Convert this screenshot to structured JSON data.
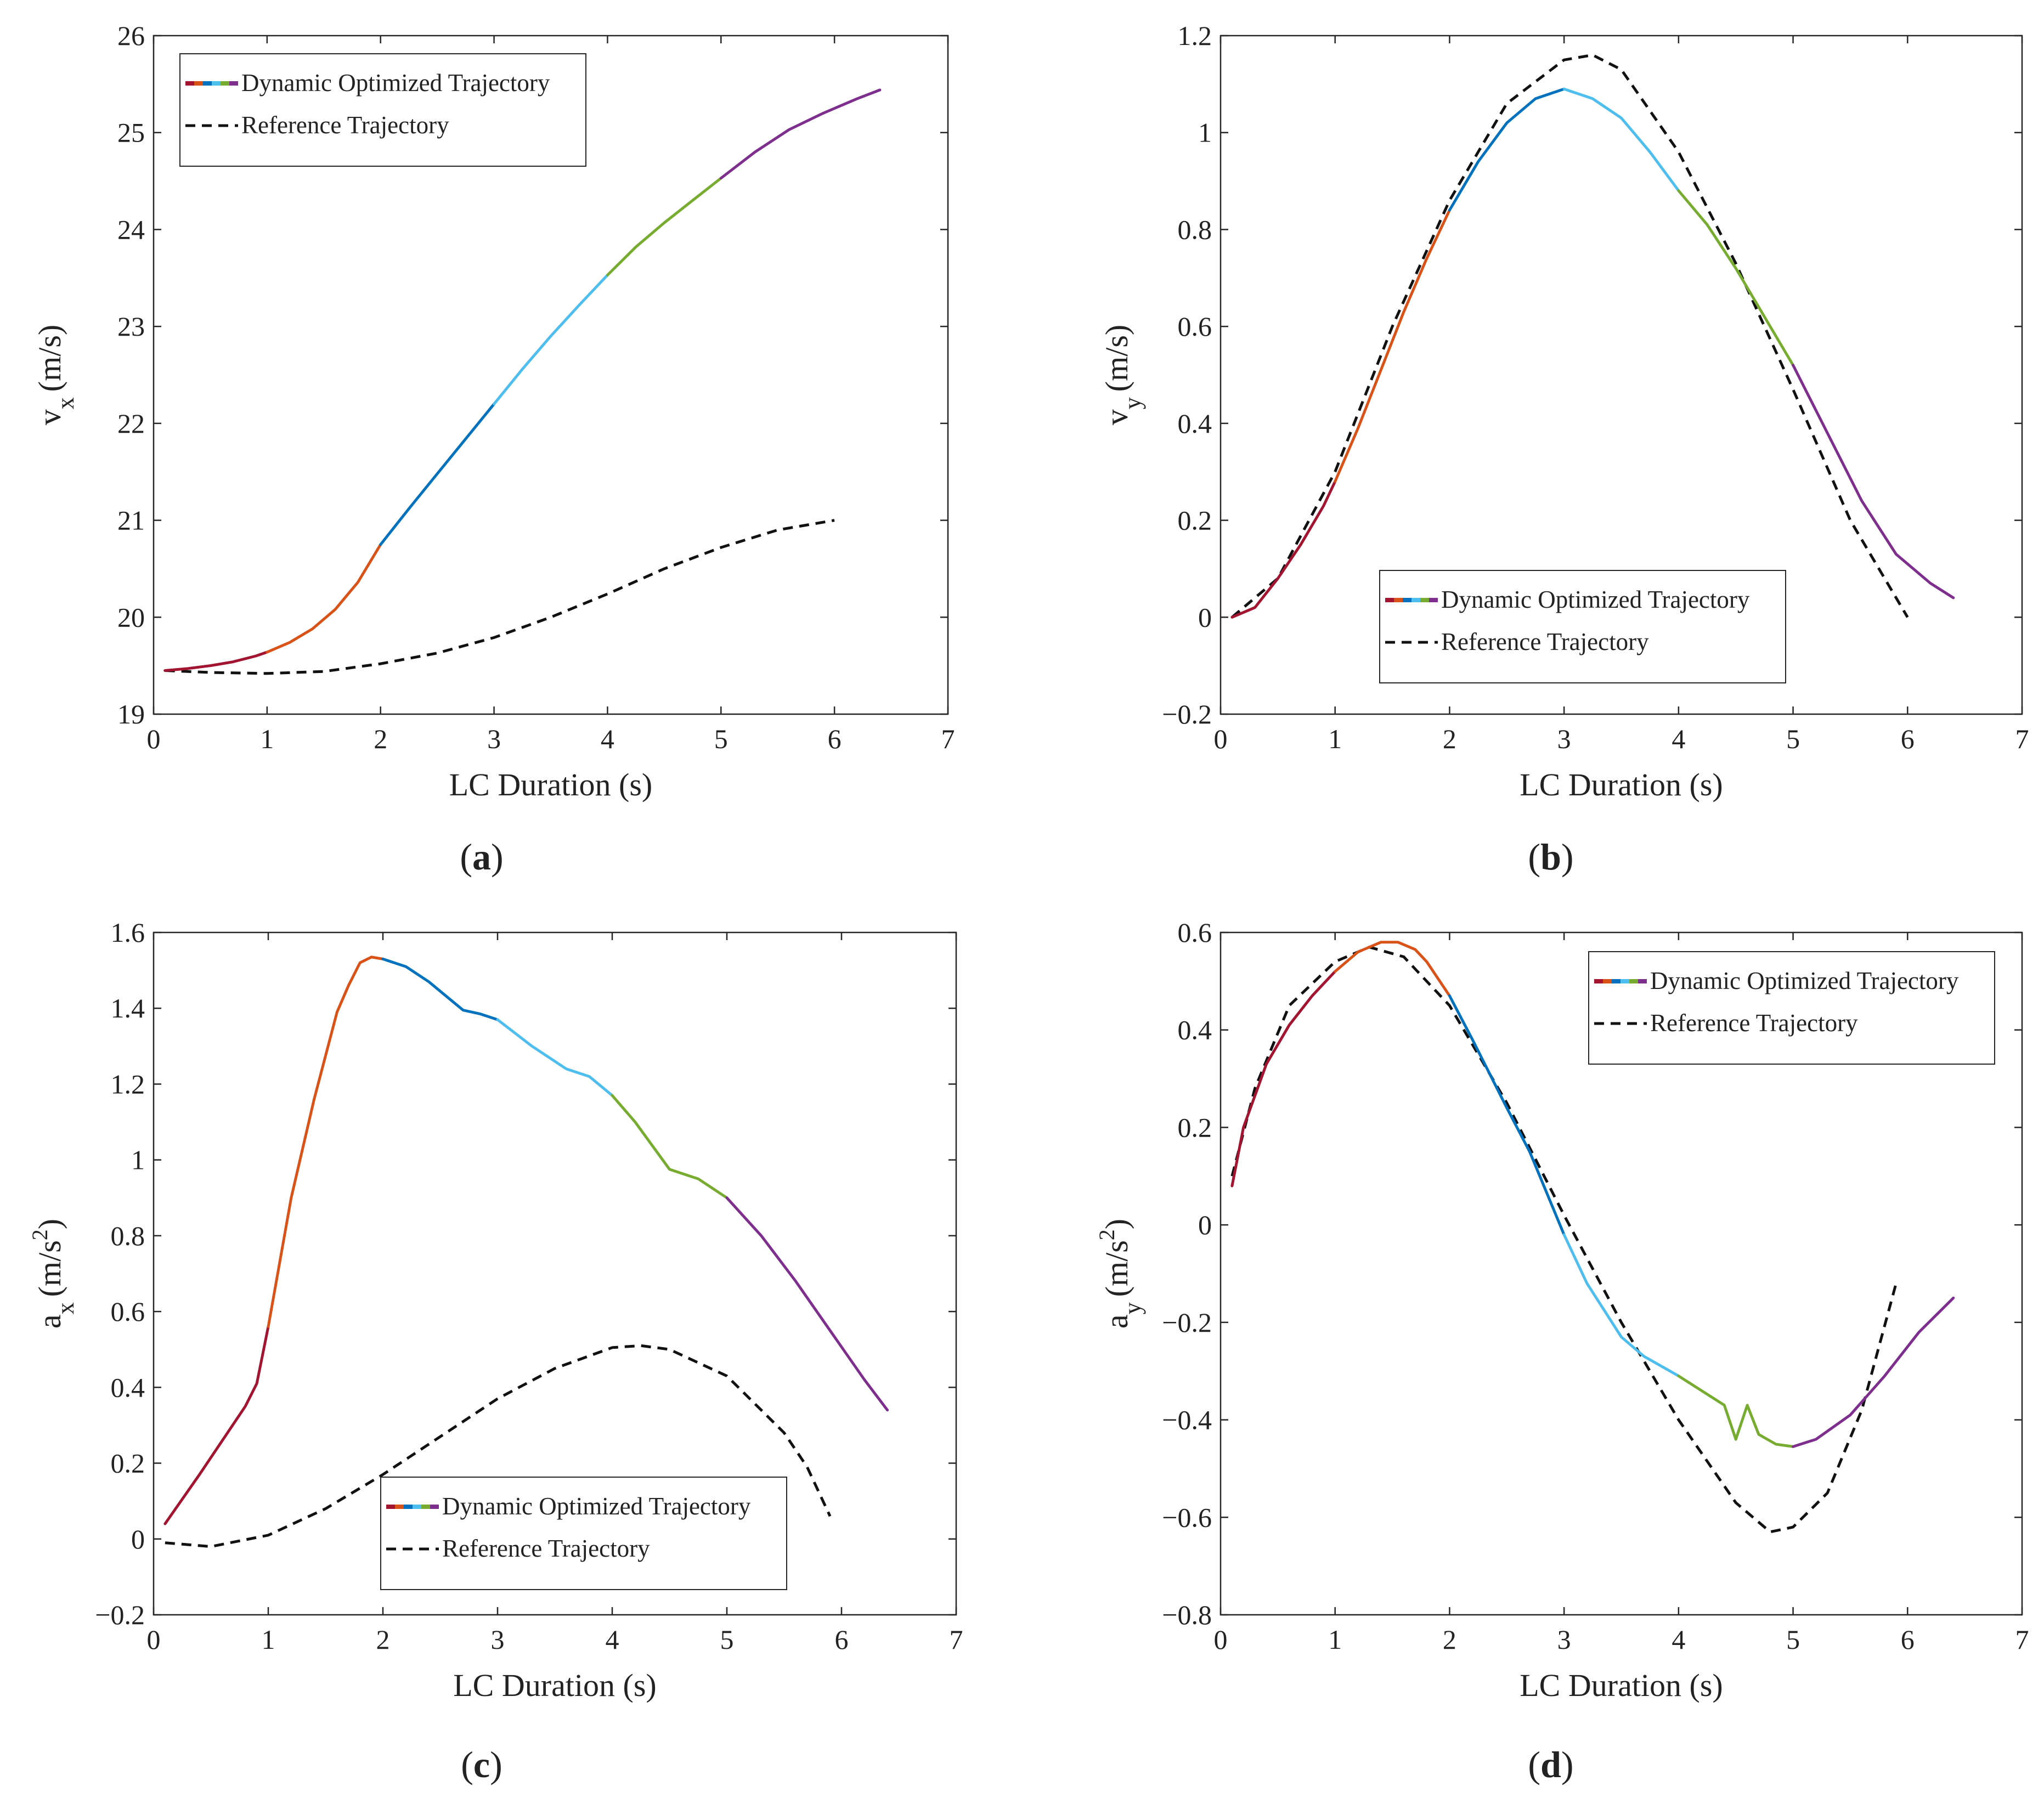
{
  "figure": {
    "captions": [
      "a",
      "b",
      "c",
      "d"
    ]
  },
  "chart_data": [
    {
      "panel": "a",
      "type": "line",
      "xlabel": "LC Duration (s)",
      "ylabel_main": "v",
      "ylabel_sub": "x",
      "ylabel_sup": "",
      "ylabel_unit": "(m/s)",
      "xlim": [
        0,
        7
      ],
      "ylim": [
        19,
        26
      ],
      "xticks": [
        0,
        1,
        2,
        3,
        4,
        5,
        6,
        7
      ],
      "yticks": [
        19,
        20,
        21,
        22,
        23,
        24,
        25,
        26
      ],
      "ytick_labels": [
        "19",
        "20",
        "21",
        "22",
        "23",
        "24",
        "25",
        "26"
      ],
      "legend_position": "top-left",
      "legend_entries": [
        "Dynamic Optimized Trajectory",
        "Reference Trajectory"
      ],
      "optimized_segments": [
        {
          "color": "#A2142F",
          "points": [
            [
              0.1,
              19.45
            ],
            [
              0.3,
              19.47
            ],
            [
              0.5,
              19.5
            ],
            [
              0.7,
              19.54
            ],
            [
              0.9,
              19.6
            ],
            [
              1.0,
              19.64
            ]
          ]
        },
        {
          "color": "#D95319",
          "points": [
            [
              1.0,
              19.64
            ],
            [
              1.2,
              19.74
            ],
            [
              1.4,
              19.88
            ],
            [
              1.6,
              20.08
            ],
            [
              1.8,
              20.36
            ],
            [
              2.0,
              20.75
            ]
          ]
        },
        {
          "color": "#0072BD",
          "points": [
            [
              2.0,
              20.75
            ],
            [
              2.25,
              21.12
            ],
            [
              2.5,
              21.48
            ],
            [
              2.75,
              21.84
            ],
            [
              3.0,
              22.2
            ]
          ]
        },
        {
          "color": "#4DBEEE",
          "points": [
            [
              3.0,
              22.2
            ],
            [
              3.25,
              22.56
            ],
            [
              3.5,
              22.9
            ],
            [
              3.75,
              23.22
            ],
            [
              4.0,
              23.53
            ]
          ]
        },
        {
          "color": "#77AC30",
          "points": [
            [
              4.0,
              23.53
            ],
            [
              4.25,
              23.82
            ],
            [
              4.5,
              24.07
            ],
            [
              4.75,
              24.3
            ],
            [
              5.0,
              24.53
            ]
          ]
        },
        {
          "color": "#7E2F8E",
          "points": [
            [
              5.0,
              24.53
            ],
            [
              5.3,
              24.8
            ],
            [
              5.6,
              25.03
            ],
            [
              5.9,
              25.2
            ],
            [
              6.2,
              25.35
            ],
            [
              6.4,
              25.44
            ]
          ]
        }
      ],
      "reference": {
        "points": [
          [
            0.1,
            19.45
          ],
          [
            0.5,
            19.43
          ],
          [
            1.0,
            19.42
          ],
          [
            1.5,
            19.44
          ],
          [
            2.0,
            19.52
          ],
          [
            2.5,
            19.63
          ],
          [
            3.0,
            19.79
          ],
          [
            3.5,
            20.0
          ],
          [
            4.0,
            20.24
          ],
          [
            4.5,
            20.5
          ],
          [
            5.0,
            20.72
          ],
          [
            5.5,
            20.9
          ],
          [
            6.0,
            21.0
          ]
        ]
      }
    },
    {
      "panel": "b",
      "type": "line",
      "xlabel": "LC Duration (s)",
      "ylabel_main": "v",
      "ylabel_sub": "y",
      "ylabel_sup": "",
      "ylabel_unit": "(m/s)",
      "xlim": [
        0,
        7
      ],
      "ylim": [
        -0.2,
        1.2
      ],
      "xticks": [
        0,
        1,
        2,
        3,
        4,
        5,
        6,
        7
      ],
      "yticks": [
        -0.2,
        0,
        0.2,
        0.4,
        0.6,
        0.8,
        1,
        1.2
      ],
      "ytick_labels": [
        "−0.2",
        "0",
        "0.2",
        "0.4",
        "0.6",
        "0.8",
        "1",
        "1.2"
      ],
      "legend_position": "bottom-center",
      "legend_entries": [
        "Dynamic Optimized Trajectory",
        "Reference Trajectory"
      ],
      "optimized_segments": [
        {
          "color": "#A2142F",
          "points": [
            [
              0.1,
              0.0
            ],
            [
              0.3,
              0.02
            ],
            [
              0.5,
              0.08
            ],
            [
              0.7,
              0.15
            ],
            [
              0.9,
              0.23
            ],
            [
              1.0,
              0.28
            ]
          ]
        },
        {
          "color": "#D95319",
          "points": [
            [
              1.0,
              0.28
            ],
            [
              1.2,
              0.39
            ],
            [
              1.4,
              0.51
            ],
            [
              1.6,
              0.63
            ],
            [
              1.8,
              0.74
            ],
            [
              2.0,
              0.84
            ]
          ]
        },
        {
          "color": "#0072BD",
          "points": [
            [
              2.0,
              0.84
            ],
            [
              2.25,
              0.94
            ],
            [
              2.5,
              1.02
            ],
            [
              2.75,
              1.07
            ],
            [
              3.0,
              1.09
            ]
          ]
        },
        {
          "color": "#4DBEEE",
          "points": [
            [
              3.0,
              1.09
            ],
            [
              3.25,
              1.07
            ],
            [
              3.5,
              1.03
            ],
            [
              3.75,
              0.96
            ],
            [
              4.0,
              0.88
            ]
          ]
        },
        {
          "color": "#77AC30",
          "points": [
            [
              4.0,
              0.88
            ],
            [
              4.25,
              0.81
            ],
            [
              4.5,
              0.72
            ],
            [
              4.75,
              0.62
            ],
            [
              5.0,
              0.52
            ]
          ]
        },
        {
          "color": "#7E2F8E",
          "points": [
            [
              5.0,
              0.52
            ],
            [
              5.3,
              0.38
            ],
            [
              5.6,
              0.24
            ],
            [
              5.9,
              0.13
            ],
            [
              6.2,
              0.07
            ],
            [
              6.4,
              0.04
            ]
          ]
        }
      ],
      "reference": {
        "points": [
          [
            0.1,
            0.0
          ],
          [
            0.5,
            0.08
          ],
          [
            1.0,
            0.3
          ],
          [
            1.5,
            0.6
          ],
          [
            2.0,
            0.86
          ],
          [
            2.5,
            1.06
          ],
          [
            3.0,
            1.15
          ],
          [
            3.25,
            1.16
          ],
          [
            3.5,
            1.13
          ],
          [
            4.0,
            0.96
          ],
          [
            4.5,
            0.73
          ],
          [
            5.0,
            0.47
          ],
          [
            5.5,
            0.2
          ],
          [
            6.0,
            0.0
          ]
        ]
      }
    },
    {
      "panel": "c",
      "type": "line",
      "xlabel": "LC Duration (s)",
      "ylabel_main": "a",
      "ylabel_sub": "x",
      "ylabel_sup": "2",
      "ylabel_unit": "(m/s",
      "xlim": [
        0,
        7
      ],
      "ylim": [
        -0.2,
        1.6
      ],
      "xticks": [
        0,
        1,
        2,
        3,
        4,
        5,
        6,
        7
      ],
      "yticks": [
        -0.2,
        0,
        0.2,
        0.4,
        0.6,
        0.8,
        1,
        1.2,
        1.4,
        1.6
      ],
      "ytick_labels": [
        "−0.2",
        "0",
        "0.2",
        "0.4",
        "0.6",
        "0.8",
        "1",
        "1.2",
        "1.4",
        "1.6"
      ],
      "legend_position": "bottom-center",
      "legend_entries": [
        "Dynamic Optimized Trajectory",
        "Reference Trajectory"
      ],
      "optimized_segments": [
        {
          "color": "#A2142F",
          "points": [
            [
              0.1,
              0.04
            ],
            [
              0.4,
              0.17
            ],
            [
              0.6,
              0.26
            ],
            [
              0.8,
              0.35
            ],
            [
              0.9,
              0.41
            ],
            [
              1.0,
              0.56
            ]
          ]
        },
        {
          "color": "#D95319",
          "points": [
            [
              1.0,
              0.56
            ],
            [
              1.2,
              0.9
            ],
            [
              1.4,
              1.16
            ],
            [
              1.6,
              1.39
            ],
            [
              1.7,
              1.46
            ],
            [
              1.8,
              1.52
            ],
            [
              1.9,
              1.535
            ],
            [
              2.0,
              1.53
            ]
          ]
        },
        {
          "color": "#0072BD",
          "points": [
            [
              2.0,
              1.53
            ],
            [
              2.2,
              1.51
            ],
            [
              2.4,
              1.47
            ],
            [
              2.6,
              1.42
            ],
            [
              2.7,
              1.395
            ],
            [
              2.85,
              1.385
            ],
            [
              3.0,
              1.37
            ]
          ]
        },
        {
          "color": "#4DBEEE",
          "points": [
            [
              3.0,
              1.37
            ],
            [
              3.3,
              1.3
            ],
            [
              3.6,
              1.24
            ],
            [
              3.8,
              1.22
            ],
            [
              4.0,
              1.17
            ]
          ]
        },
        {
          "color": "#77AC30",
          "points": [
            [
              4.0,
              1.17
            ],
            [
              4.2,
              1.1
            ],
            [
              4.5,
              0.975
            ],
            [
              4.75,
              0.95
            ],
            [
              5.0,
              0.9
            ]
          ]
        },
        {
          "color": "#7E2F8E",
          "points": [
            [
              5.0,
              0.9
            ],
            [
              5.3,
              0.8
            ],
            [
              5.6,
              0.68
            ],
            [
              5.9,
              0.55
            ],
            [
              6.2,
              0.42
            ],
            [
              6.4,
              0.34
            ]
          ]
        }
      ],
      "reference": {
        "points": [
          [
            0.1,
            -0.01
          ],
          [
            0.5,
            -0.02
          ],
          [
            1.0,
            0.01
          ],
          [
            1.5,
            0.08
          ],
          [
            2.0,
            0.17
          ],
          [
            2.5,
            0.27
          ],
          [
            3.0,
            0.37
          ],
          [
            3.5,
            0.45
          ],
          [
            4.0,
            0.505
          ],
          [
            4.25,
            0.51
          ],
          [
            4.5,
            0.5
          ],
          [
            5.0,
            0.43
          ],
          [
            5.5,
            0.28
          ],
          [
            5.7,
            0.19
          ],
          [
            5.9,
            0.06
          ]
        ]
      }
    },
    {
      "panel": "d",
      "type": "line",
      "xlabel": "LC Duration (s)",
      "ylabel_main": "a",
      "ylabel_sub": "y",
      "ylabel_sup": "2",
      "ylabel_unit": "(m/s",
      "xlim": [
        0,
        7
      ],
      "ylim": [
        -0.8,
        0.6
      ],
      "xticks": [
        0,
        1,
        2,
        3,
        4,
        5,
        6,
        7
      ],
      "yticks": [
        -0.8,
        -0.6,
        -0.4,
        -0.2,
        0,
        0.2,
        0.4,
        0.6
      ],
      "ytick_labels": [
        "−0.8",
        "−0.6",
        "−0.4",
        "−0.2",
        "0",
        "0.2",
        "0.4",
        "0.6"
      ],
      "legend_position": "top-right",
      "legend_entries": [
        "Dynamic Optimized Trajectory",
        "Reference Trajectory"
      ],
      "optimized_segments": [
        {
          "color": "#A2142F",
          "points": [
            [
              0.1,
              0.08
            ],
            [
              0.2,
              0.2
            ],
            [
              0.4,
              0.33
            ],
            [
              0.6,
              0.41
            ],
            [
              0.8,
              0.47
            ],
            [
              1.0,
              0.52
            ]
          ]
        },
        {
          "color": "#D95319",
          "points": [
            [
              1.0,
              0.52
            ],
            [
              1.2,
              0.56
            ],
            [
              1.4,
              0.58
            ],
            [
              1.55,
              0.58
            ],
            [
              1.7,
              0.565
            ],
            [
              1.8,
              0.54
            ],
            [
              2.0,
              0.47
            ]
          ]
        },
        {
          "color": "#0072BD",
          "points": [
            [
              2.0,
              0.47
            ],
            [
              2.2,
              0.38
            ],
            [
              2.5,
              0.24
            ],
            [
              2.7,
              0.15
            ],
            [
              3.0,
              -0.02
            ]
          ]
        },
        {
          "color": "#4DBEEE",
          "points": [
            [
              3.0,
              -0.02
            ],
            [
              3.2,
              -0.12
            ],
            [
              3.5,
              -0.23
            ],
            [
              3.7,
              -0.27
            ],
            [
              4.0,
              -0.31
            ]
          ]
        },
        {
          "color": "#77AC30",
          "points": [
            [
              4.0,
              -0.31
            ],
            [
              4.4,
              -0.37
            ],
            [
              4.5,
              -0.44
            ],
            [
              4.6,
              -0.37
            ],
            [
              4.7,
              -0.43
            ],
            [
              4.85,
              -0.45
            ],
            [
              5.0,
              -0.455
            ]
          ]
        },
        {
          "color": "#7E2F8E",
          "points": [
            [
              5.0,
              -0.455
            ],
            [
              5.2,
              -0.44
            ],
            [
              5.5,
              -0.39
            ],
            [
              5.8,
              -0.31
            ],
            [
              6.1,
              -0.22
            ],
            [
              6.4,
              -0.15
            ]
          ]
        }
      ],
      "reference": {
        "points": [
          [
            0.1,
            0.1
          ],
          [
            0.3,
            0.28
          ],
          [
            0.6,
            0.45
          ],
          [
            1.0,
            0.54
          ],
          [
            1.3,
            0.57
          ],
          [
            1.6,
            0.55
          ],
          [
            2.0,
            0.45
          ],
          [
            2.5,
            0.25
          ],
          [
            3.0,
            0.02
          ],
          [
            3.5,
            -0.2
          ],
          [
            4.0,
            -0.4
          ],
          [
            4.5,
            -0.57
          ],
          [
            4.8,
            -0.63
          ],
          [
            5.0,
            -0.62
          ],
          [
            5.3,
            -0.55
          ],
          [
            5.6,
            -0.38
          ],
          [
            5.9,
            -0.12
          ]
        ]
      }
    }
  ]
}
